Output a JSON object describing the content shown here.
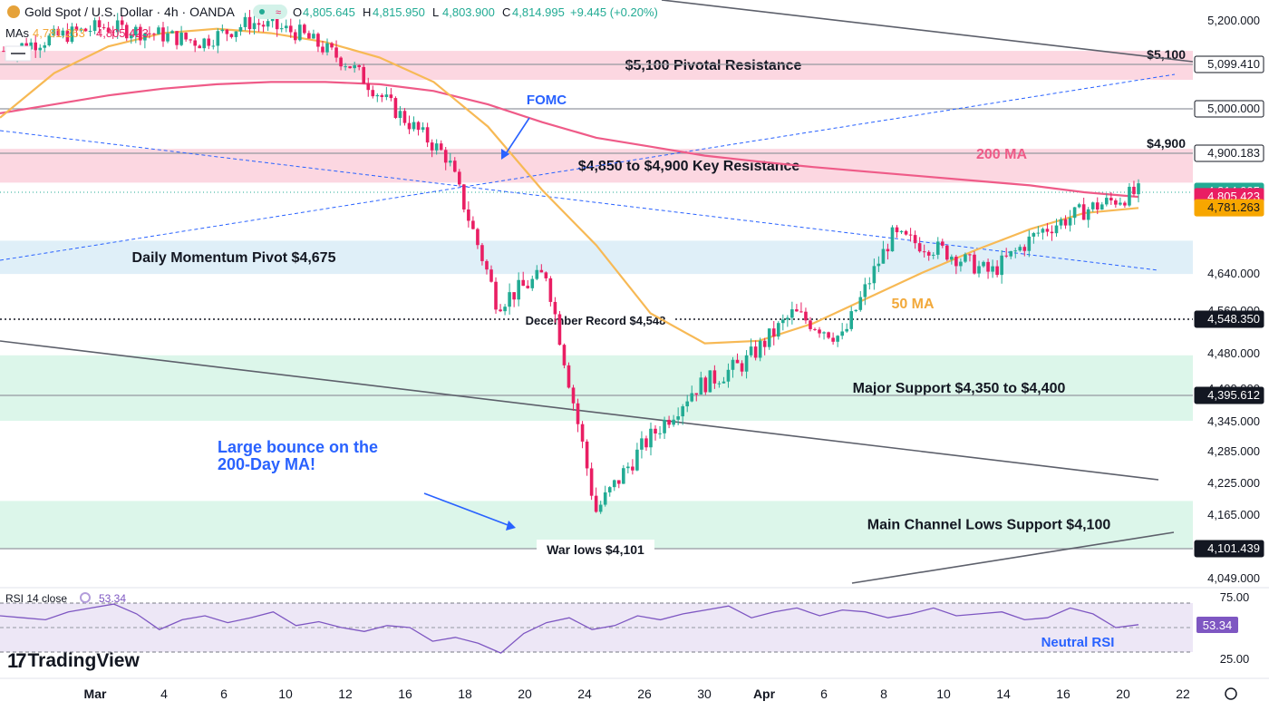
{
  "header": {
    "symbol": "Gold Spot / U.S. Dollar · 4h · OANDA",
    "ohlc": {
      "o_label": "O",
      "o": "4,805.645",
      "h_label": "H",
      "h": "4,815.950",
      "l_label": "L",
      "l": "4,803.900",
      "c_label": "C",
      "c": "4,814.995",
      "change": "+9.445 (+0.20%)"
    },
    "mas_label": "MAs",
    "mas_values": [
      "4,781.263",
      "4,805.423"
    ]
  },
  "branding": {
    "logo_text": "TradingView"
  },
  "colors": {
    "up": "#22ab94",
    "down": "#e91e63",
    "ma200": "#ef5b88",
    "ma50": "#f7b955",
    "resistance_zone": "#fbd0dc",
    "pivot_zone": "#d9ecf7",
    "support_zone": "#d6f5e6",
    "annotation_blue": "#2962ff",
    "rsi": "#7e57c2"
  },
  "chart_data": {
    "type": "candlestick",
    "title": "Gold Spot / U.S. Dollar · 4h · OANDA",
    "ylim": [
      4010,
      5230
    ],
    "x_ticks": [
      "Mar",
      "4",
      "6",
      "10",
      "12",
      "16",
      "18",
      "20",
      "24",
      "26",
      "30",
      "Apr",
      "6",
      "8",
      "10",
      "14",
      "16",
      "20",
      "22"
    ],
    "y_ticks": [
      "5,200.000",
      "4,640.000",
      "4,560.000",
      "4,480.000",
      "4,400.000",
      "4,345.000",
      "4,285.000",
      "4,225.000",
      "4,165.000",
      "4,049.000"
    ],
    "price_labels": [
      {
        "value": 5099.41,
        "text": "5,099.410",
        "style": "outline"
      },
      {
        "value": 5000.0,
        "text": "5,000.000",
        "style": "outline"
      },
      {
        "value": 4900.183,
        "text": "4,900.183",
        "style": "outline"
      },
      {
        "value": 4814.995,
        "text": "4,814.995",
        "sub": "02:13:48",
        "style": "green"
      },
      {
        "value": 4805.423,
        "text": "4,805.423",
        "style": "pink"
      },
      {
        "value": 4781.263,
        "text": "4,781.263",
        "style": "orange"
      },
      {
        "value": 4548.35,
        "text": "4,548.350",
        "style": "dark"
      },
      {
        "value": 4395.612,
        "text": "4,395.612",
        "style": "dark"
      },
      {
        "value": 4101.439,
        "text": "4,101.439",
        "style": "dark"
      }
    ],
    "zones": [
      {
        "label": "$5,100 Pivotal Resistance",
        "from": 5065,
        "to": 5130,
        "type": "resistance"
      },
      {
        "label": "$4,850 to $4,900 Key Resistance",
        "from": 4836,
        "to": 4910,
        "type": "resistance"
      },
      {
        "label": "Daily Momentum Pivot $4,675",
        "from": 4638,
        "to": 4710,
        "type": "pivot"
      },
      {
        "label": "Major Support $4,350 to $4,400",
        "from": 4345,
        "to": 4476,
        "type": "support"
      },
      {
        "label": "Main Channel Lows Support $4,100",
        "from": 4102,
        "to": 4190,
        "type": "support"
      }
    ],
    "levels": [
      {
        "label": "$5,100",
        "value": 5099.41
      },
      {
        "label": "",
        "value": 5000.0
      },
      {
        "label": "$4,900",
        "value": 4900.183
      },
      {
        "label": "December Record $4,548",
        "value": 4548.35,
        "style": "dotted"
      },
      {
        "label": "",
        "value": 4395.612
      },
      {
        "label": "War lows $4,101",
        "value": 4101.439
      }
    ],
    "annotations": [
      {
        "text": "FOMC"
      },
      {
        "text": "200 MA"
      },
      {
        "text": "50 MA"
      },
      {
        "text": "Large bounce on the"
      },
      {
        "text": "200-Day MA!"
      },
      {
        "text": "Neutral RSI"
      }
    ],
    "series": [
      {
        "name": "MA 200",
        "values": [
          4990,
          5010,
          5030,
          5045,
          5055,
          5060,
          5060,
          5055,
          5040,
          5010,
          4970,
          4935,
          4915,
          4895,
          4882,
          4870,
          4860,
          4850,
          4840,
          4830,
          4815,
          4805
        ]
      },
      {
        "name": "MA 50",
        "values": [
          4980,
          5080,
          5140,
          5170,
          5180,
          5170,
          5150,
          5115,
          5060,
          4960,
          4820,
          4700,
          4560,
          4500,
          4505,
          4540,
          4590,
          4640,
          4690,
          4735,
          4770,
          4781
        ]
      },
      {
        "name": "Price",
        "values": [
          5130,
          5160,
          5185,
          5170,
          5150,
          5195,
          5170,
          5100,
          4990,
          4890,
          4580,
          4640,
          4170,
          4300,
          4410,
          4460,
          4560,
          4510,
          4720,
          4690,
          4640,
          4730,
          4780,
          4815
        ]
      }
    ],
    "rsi": {
      "label": "RSI 14 close",
      "value": "53.34",
      "levels": [
        "75.00",
        "25.00"
      ],
      "values": [
        62,
        60,
        58,
        66,
        70,
        74,
        64,
        48,
        58,
        62,
        55,
        60,
        66,
        52,
        56,
        50,
        46,
        52,
        50,
        36,
        40,
        34,
        24,
        44,
        55,
        60,
        48,
        52,
        62,
        58,
        64,
        68,
        72,
        60,
        66,
        70,
        62,
        68,
        66,
        60,
        64,
        70,
        62,
        64,
        66,
        58,
        60,
        70,
        64,
        50,
        53
      ]
    }
  }
}
